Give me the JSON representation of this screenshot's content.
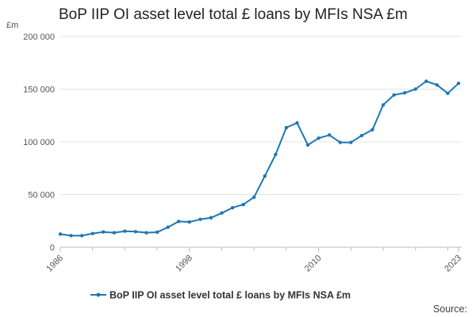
{
  "chart_data": {
    "type": "line",
    "title": "BoP IIP OI asset level total £ loans by MFIs NSA £m",
    "unit": "£m",
    "ylim": [
      0,
      200000
    ],
    "yticks": [
      0,
      50000,
      100000,
      150000,
      200000
    ],
    "ytick_labels": [
      "0",
      "50 000",
      "100 000",
      "150 000",
      "200 000"
    ],
    "xlim": [
      1986,
      2023
    ],
    "xticks": [
      1986,
      1998,
      2010,
      2023
    ],
    "xtick_labels": [
      "1986",
      "1998",
      "2010",
      "2023"
    ],
    "grid": true,
    "legend": "bottom-center",
    "color": "#1f77b4",
    "series": [
      {
        "name": "BoP IIP OI asset level total £ loans by MFIs NSA £m",
        "x": [
          1986,
          1987,
          1988,
          1989,
          1990,
          1991,
          1992,
          1993,
          1994,
          1995,
          1996,
          1997,
          1998,
          1999,
          2000,
          2001,
          2002,
          2003,
          2004,
          2005,
          2006,
          2007,
          2008,
          2009,
          2010,
          2011,
          2012,
          2013,
          2014,
          2015,
          2016,
          2017,
          2018,
          2019,
          2020,
          2021,
          2022,
          2023
        ],
        "values": [
          12500,
          11000,
          11000,
          13000,
          14500,
          13800,
          15300,
          14800,
          13800,
          14300,
          19000,
          24500,
          24000,
          26500,
          28000,
          32500,
          37500,
          40500,
          47500,
          67500,
          88000,
          113500,
          118000,
          97000,
          103500,
          106500,
          99500,
          99500,
          106000,
          111500,
          135000,
          144500,
          146500,
          150000,
          157500,
          154000,
          146000,
          155500
        ]
      }
    ]
  },
  "source_label": "Source:"
}
